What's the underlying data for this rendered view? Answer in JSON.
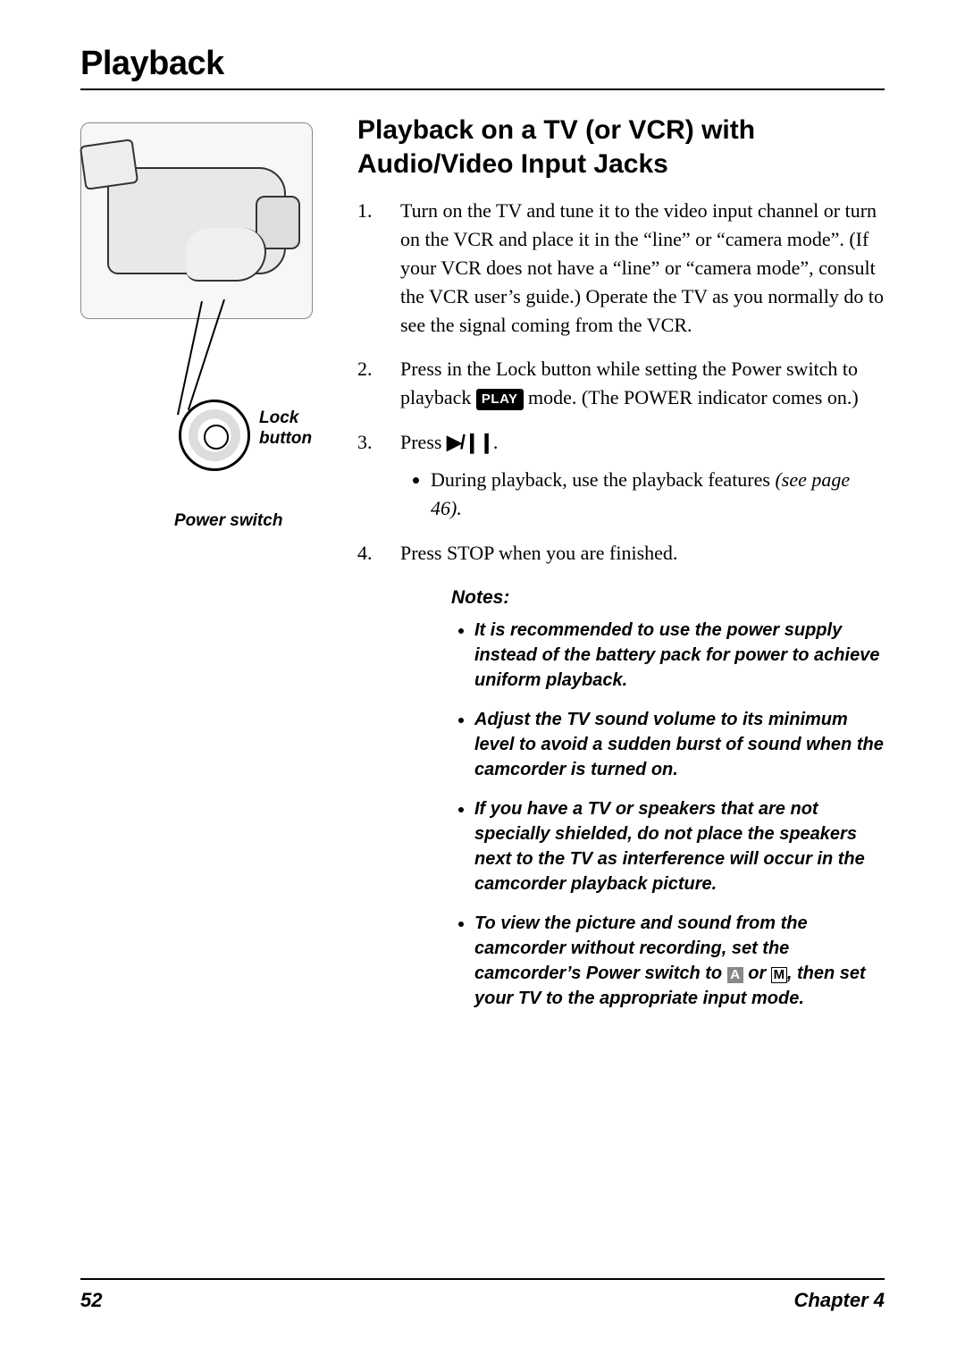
{
  "heading": "Playback",
  "section_title": "Playback on a TV (or VCR) with Audio/Video Input Jacks",
  "diagram": {
    "lock_label": "Lock button",
    "power_label": "Power switch"
  },
  "steps": {
    "s1": "Turn on the TV and tune it to the video input channel or turn on the VCR and place it in the “line” or “camera mode”. (If your VCR does not have a “line” or “camera mode”, consult the VCR user’s guide.) Operate the TV as you normally do to see the signal coming from the VCR.",
    "s2_a": "Press in the Lock button while setting the Power switch to playback ",
    "s2_badge": "PLAY",
    "s2_b": " mode. (The POWER indicator comes on.)",
    "s3_a": "Press ",
    "s3_glyph": "▶/❙❙",
    "s3_b": ".",
    "s3_sub_a": "During playback, use the playback features ",
    "s3_sub_ref": "(see page 46).",
    "s4": "Press STOP when you are finished."
  },
  "notes": {
    "heading": "Notes:",
    "n1": "It is recommended to use the power supply instead of the battery pack for power to achieve uniform playback.",
    "n2": "Adjust the TV sound volume to its minimum level to avoid a sudden burst of sound when the camcorder is turned on.",
    "n3": "If you have a TV or speakers that are not specially shielded, do not place the speakers next to the TV as interference will occur in the camcorder playback picture.",
    "n4_a": "To view the picture and sound from the camcorder without recording, set the camcorder’s Power switch to ",
    "n4_mode_a": "A",
    "n4_or": " or ",
    "n4_mode_m": "M",
    "n4_b": ", then set your TV to the appropriate input mode."
  },
  "footer": {
    "page": "52",
    "chapter": "Chapter 4"
  }
}
